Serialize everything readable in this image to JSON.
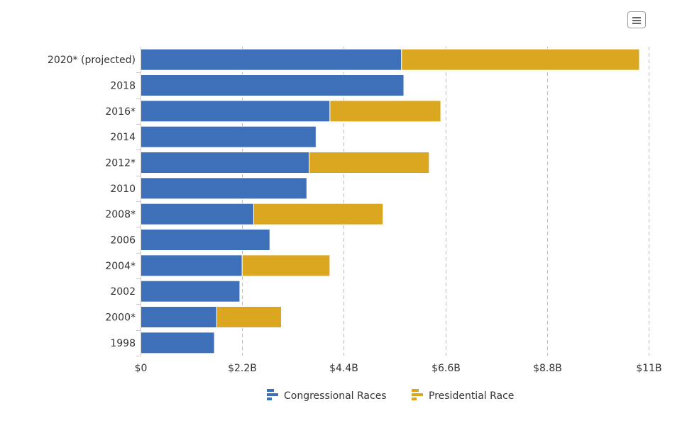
{
  "chart_data": {
    "type": "bar",
    "orientation": "horizontal",
    "stacked": true,
    "categories": [
      "2020* (projected)",
      "2018",
      "2016*",
      "2014",
      "2012*",
      "2010",
      "2008*",
      "2006",
      "2004*",
      "2002",
      "2000*",
      "1998"
    ],
    "series": [
      {
        "name": "Congressional Races",
        "color": "#3d70b8",
        "values": [
          5.65,
          5.7,
          4.1,
          3.8,
          3.65,
          3.6,
          2.45,
          2.8,
          2.2,
          2.15,
          1.65,
          1.6
        ]
      },
      {
        "name": "Presidential Race",
        "color": "#dba620",
        "values": [
          5.15,
          0,
          2.4,
          0,
          2.6,
          0,
          2.8,
          0,
          1.9,
          0,
          1.4,
          0
        ]
      }
    ],
    "xlim": [
      0,
      11
    ],
    "xticks": [
      {
        "value": 0,
        "label": "$0"
      },
      {
        "value": 2.2,
        "label": "$2.2B"
      },
      {
        "value": 4.4,
        "label": "$4.4B"
      },
      {
        "value": 6.6,
        "label": "$6.6B"
      },
      {
        "value": 8.8,
        "label": "$8.8B"
      },
      {
        "value": 11,
        "label": "$11B"
      }
    ],
    "title": "",
    "xlabel": "",
    "ylabel": "",
    "grid": "vertical dashed",
    "legend_position": "bottom"
  },
  "menu": {
    "icon": "hamburger-menu-icon"
  }
}
